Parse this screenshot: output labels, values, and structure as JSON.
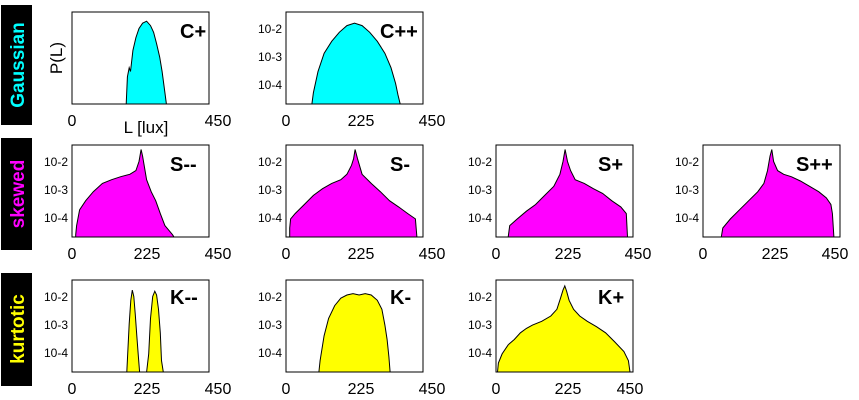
{
  "chart_data": [
    {
      "type": "area",
      "row": "Gaussian",
      "title": "C+",
      "fill": "#00ffff",
      "xlabel": "L [lux]",
      "ylabel": "P(L)",
      "xlim": [
        0,
        450
      ],
      "x_ticks": [
        "0",
        "450"
      ],
      "y_ticks": [],
      "y_scale": "log",
      "x": [
        178,
        182,
        188,
        192,
        200,
        210,
        220,
        232,
        245,
        258,
        268,
        278,
        288,
        296,
        305,
        310
      ],
      "y": [
        2e-05,
        0.0002,
        0.0004,
        0.0003,
        0.0015,
        0.004,
        0.008,
        0.012,
        0.014,
        0.01,
        0.006,
        0.0025,
        0.0009,
        0.0003,
        6e-05,
        2e-05
      ]
    },
    {
      "type": "area",
      "row": "Gaussian",
      "title": "C++",
      "fill": "#00ffff",
      "xlabel": "",
      "ylabel": "",
      "xlim": [
        0,
        450
      ],
      "x_ticks": [
        "0",
        "225",
        "450"
      ],
      "y_ticks": [
        "10-2",
        "10-3",
        "10-4"
      ],
      "y_scale": "log",
      "x": [
        85,
        90,
        105,
        125,
        150,
        175,
        200,
        225,
        250,
        275,
        300,
        325,
        345,
        360,
        368,
        375
      ],
      "y": [
        2e-05,
        6e-05,
        0.0003,
        0.0012,
        0.003,
        0.006,
        0.01,
        0.012,
        0.01,
        0.006,
        0.003,
        0.0012,
        0.0004,
        0.00012,
        5e-05,
        2e-05
      ]
    },
    {
      "type": "area",
      "row": "skewed",
      "title": "S--",
      "fill": "#ff00ff",
      "xlabel": "",
      "ylabel": "",
      "xlim": [
        0,
        450
      ],
      "x_ticks": [
        "0",
        "225",
        "450"
      ],
      "y_ticks": [
        "10-2",
        "10-3",
        "10-4"
      ],
      "y_scale": "log",
      "x": [
        12,
        15,
        25,
        45,
        70,
        100,
        130,
        160,
        190,
        210,
        220,
        227,
        232,
        245,
        260,
        275,
        290,
        305,
        320,
        330,
        335
      ],
      "y": [
        3e-05,
        6e-05,
        0.0002,
        0.0004,
        0.0008,
        0.0015,
        0.002,
        0.0025,
        0.003,
        0.004,
        0.008,
        0.02,
        0.012,
        0.002,
        0.0008,
        0.0004,
        0.00015,
        6e-05,
        4e-05,
        3e-05,
        2e-05
      ]
    },
    {
      "type": "area",
      "row": "skewed",
      "title": "S-",
      "fill": "#ff00ff",
      "xlabel": "",
      "ylabel": "",
      "xlim": [
        0,
        450
      ],
      "x_ticks": [
        "0",
        "225",
        "450"
      ],
      "y_ticks": [
        "10-2",
        "10-3",
        "10-4"
      ],
      "y_scale": "log",
      "x": [
        12,
        15,
        30,
        60,
        90,
        120,
        150,
        180,
        200,
        215,
        222,
        227,
        235,
        250,
        280,
        310,
        340,
        370,
        400,
        425,
        430
      ],
      "y": [
        5e-05,
        0.0001,
        0.00015,
        0.0003,
        0.0006,
        0.001,
        0.0015,
        0.002,
        0.003,
        0.006,
        0.01,
        0.02,
        0.01,
        0.003,
        0.0015,
        0.0008,
        0.0004,
        0.00025,
        0.00015,
        0.0001,
        2e-05
      ]
    },
    {
      "type": "area",
      "row": "skewed",
      "title": "S+",
      "fill": "#ff00ff",
      "xlabel": "",
      "ylabel": "",
      "xlim": [
        0,
        450
      ],
      "x_ticks": [
        "0",
        "225",
        "450"
      ],
      "y_ticks": [
        "10-2",
        "10-3",
        "10-4"
      ],
      "y_scale": "log",
      "x": [
        40,
        45,
        70,
        100,
        130,
        160,
        190,
        210,
        220,
        227,
        235,
        245,
        260,
        290,
        320,
        350,
        380,
        410,
        428,
        432
      ],
      "y": [
        2e-05,
        6e-05,
        0.0001,
        0.00018,
        0.0003,
        0.0006,
        0.0012,
        0.003,
        0.008,
        0.02,
        0.008,
        0.004,
        0.002,
        0.0015,
        0.001,
        0.0007,
        0.0004,
        0.00025,
        0.00015,
        2e-05
      ]
    },
    {
      "type": "area",
      "row": "skewed",
      "title": "S++",
      "fill": "#ff00ff",
      "xlabel": "",
      "ylabel": "",
      "xlim": [
        0,
        450
      ],
      "x_ticks": [
        "0",
        "225",
        "450"
      ],
      "y_ticks": [
        "10-2",
        "10-3",
        "10-4"
      ],
      "y_scale": "log",
      "x": [
        60,
        65,
        90,
        120,
        150,
        180,
        200,
        212,
        220,
        226,
        232,
        245,
        265,
        290,
        320,
        350,
        380,
        405,
        420,
        425,
        430
      ],
      "y": [
        2e-05,
        5e-05,
        0.0001,
        0.0002,
        0.0004,
        0.0008,
        0.0015,
        0.004,
        0.012,
        0.02,
        0.008,
        0.004,
        0.003,
        0.0025,
        0.0018,
        0.0012,
        0.0008,
        0.0005,
        0.0003,
        0.00015,
        2e-05
      ]
    },
    {
      "type": "area",
      "row": "kurtotic",
      "title": "K--",
      "fill": "#ffff00",
      "xlabel": "",
      "ylabel": "",
      "xlim": [
        0,
        450
      ],
      "x_ticks": [
        "0",
        "225",
        "450"
      ],
      "y_ticks": [
        "10-2",
        "10-3",
        "10-4"
      ],
      "y_scale": "log",
      "x": [
        180,
        183,
        188,
        193,
        198,
        203,
        208,
        213,
        218,
        222,
        228,
        245,
        252,
        258,
        265,
        272,
        278,
        284,
        290,
        294,
        300
      ],
      "y": [
        2e-05,
        0.0001,
        0.001,
        0.006,
        0.013,
        0.008,
        0.002,
        0.0004,
        8e-05,
        2e-05,
        2e-05,
        2e-05,
        0.0001,
        0.0015,
        0.008,
        0.012,
        0.009,
        0.003,
        0.0005,
        6e-05,
        2e-05
      ]
    },
    {
      "type": "area",
      "row": "kurtotic",
      "title": "K-",
      "fill": "#ffff00",
      "xlabel": "",
      "ylabel": "",
      "xlim": [
        0,
        450
      ],
      "x_ticks": [
        "0",
        "225",
        "450"
      ],
      "y_ticks": [
        "10-2",
        "10-3",
        "10-4"
      ],
      "y_scale": "log",
      "x": [
        108,
        112,
        125,
        140,
        160,
        180,
        200,
        220,
        240,
        260,
        280,
        300,
        315,
        325,
        332,
        338,
        342
      ],
      "y": [
        2e-05,
        6e-05,
        0.0004,
        0.0015,
        0.004,
        0.007,
        0.009,
        0.01,
        0.009,
        0.01,
        0.009,
        0.006,
        0.003,
        0.0009,
        0.0003,
        8e-05,
        2e-05
      ]
    },
    {
      "type": "area",
      "row": "kurtotic",
      "title": "K+",
      "fill": "#ffff00",
      "xlabel": "",
      "ylabel": "",
      "xlim": [
        0,
        450
      ],
      "x_ticks": [
        "0",
        "225",
        "450"
      ],
      "y_ticks": [
        "10-2",
        "10-3",
        "10-4"
      ],
      "y_scale": "log",
      "x": [
        5,
        8,
        20,
        40,
        60,
        80,
        100,
        120,
        150,
        180,
        200,
        212,
        220,
        226,
        232,
        240,
        255,
        275,
        300,
        330,
        360,
        390,
        420,
        435,
        440
      ],
      "y": [
        2e-05,
        5e-05,
        0.0001,
        0.0002,
        0.0003,
        0.0005,
        0.0007,
        0.0009,
        0.0012,
        0.0018,
        0.003,
        0.007,
        0.013,
        0.018,
        0.012,
        0.006,
        0.003,
        0.0018,
        0.0012,
        0.0008,
        0.0005,
        0.00025,
        0.00012,
        6e-05,
        2e-05
      ]
    }
  ],
  "row_labels": [
    {
      "text": "Gaussian",
      "color": "#00ffff"
    },
    {
      "text": "skewed",
      "color": "#ff00ff"
    },
    {
      "text": "kurtotic",
      "color": "#ffff00"
    }
  ]
}
